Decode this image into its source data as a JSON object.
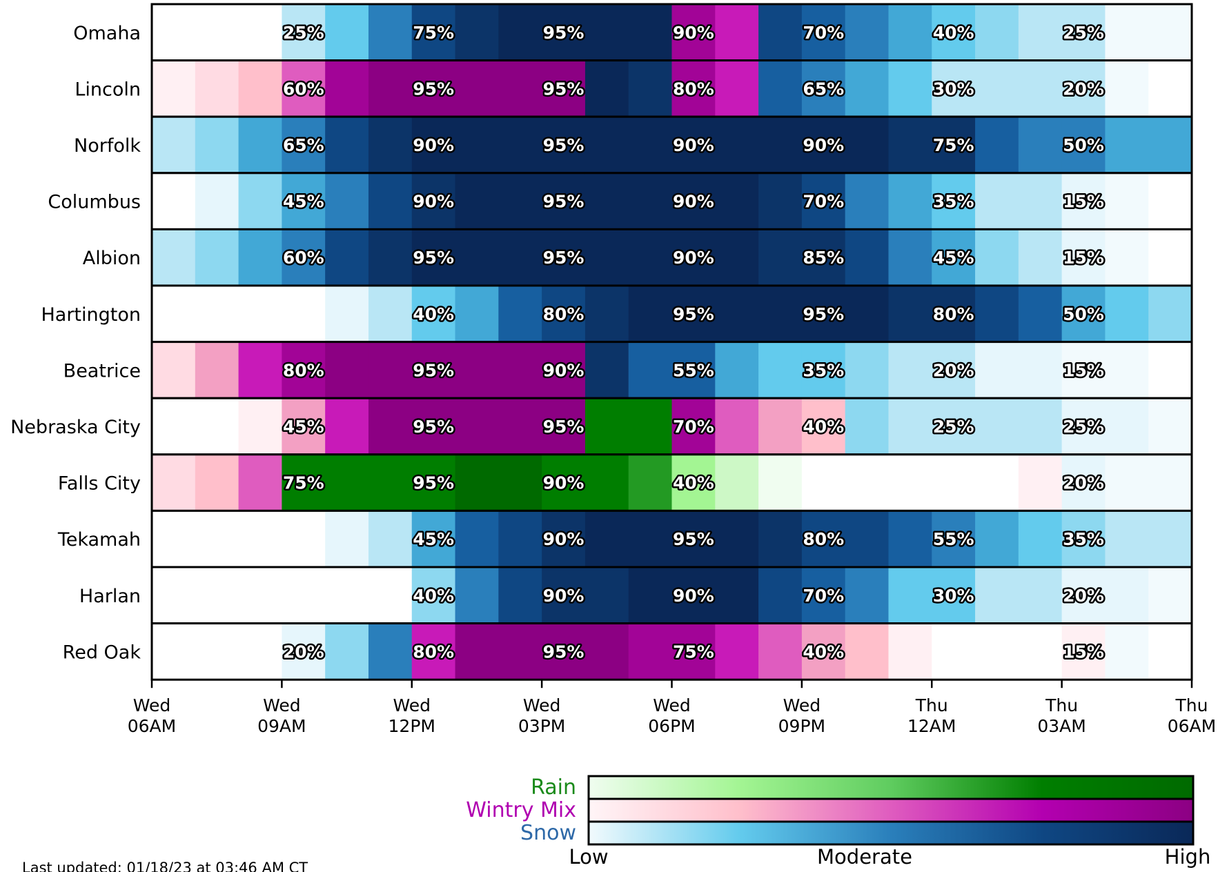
{
  "chart_data": {
    "type": "heatmap",
    "x_ticks": [
      "Wed 06AM",
      "Wed 09AM",
      "Wed 12PM",
      "Wed 03PM",
      "Wed 06PM",
      "Wed 09PM",
      "Thu 12AM",
      "Thu 03AM",
      "Thu 06AM"
    ],
    "hours_per_column": 1,
    "levels": [
      "n",
      "s1",
      "s2",
      "s3",
      "s4",
      "s5",
      "s6",
      "s7",
      "s8",
      "w1",
      "w2",
      "w3",
      "w4",
      "w5",
      "w6",
      "w7",
      "r1",
      "r2",
      "r3",
      "r4",
      "r5",
      "r6"
    ],
    "level_colors": {
      "n": "#ffffff",
      "s1": "#f2fafd",
      "s2": "#e6f6fc",
      "s3": "#b9e6f5",
      "s4": "#8dd8f0",
      "s5": "#63cbed",
      "s6": "#42a8d6",
      "s7": "#2a7fbb",
      "s8": "#175fa0",
      "s9": "#0f4783",
      "s10": "#0c3468",
      "s11": "#0a2858",
      "w1": "#fff0f3",
      "w2": "#ffdbe3",
      "w3": "#ffbfcb",
      "w4": "#f3a0c3",
      "w5": "#df5cbf",
      "w6": "#c81ab8",
      "w7": "#a20497",
      "w8": "#8c0083",
      "r1": "#f0fdf0",
      "r2": "#cdf8c6",
      "r3": "#a3f593",
      "r4": "#239a23",
      "r5": "#007e00",
      "r6": "#006a00"
    },
    "rows": [
      {
        "name": "Omaha",
        "levels": [
          "n",
          "n",
          "n",
          "s3",
          "s5",
          "s7",
          "s9",
          "s10",
          "s11",
          "s11",
          "s11",
          "s11",
          "w7",
          "w6",
          "s9",
          "s8",
          "s7",
          "s6",
          "s5",
          "s4",
          "s3",
          "s3",
          "s1",
          "s1"
        ],
        "labels": {
          "3": "25%",
          "6": "75%",
          "9": "95%",
          "12": "90%",
          "15": "70%",
          "18": "40%",
          "21": "25%"
        }
      },
      {
        "name": "Lincoln",
        "levels": [
          "w1",
          "w2",
          "w3",
          "w5",
          "w7",
          "w8",
          "w8",
          "w8",
          "w8",
          "w8",
          "s11",
          "s10",
          "w7",
          "w6",
          "s8",
          "s7",
          "s6",
          "s5",
          "s3",
          "s3",
          "s3",
          "s3",
          "s1",
          "n"
        ],
        "labels": {
          "3": "60%",
          "6": "95%",
          "9": "95%",
          "12": "80%",
          "15": "65%",
          "18": "30%",
          "21": "20%"
        }
      },
      {
        "name": "Norfolk",
        "levels": [
          "s3",
          "s4",
          "s6",
          "s7",
          "s9",
          "s10",
          "s11",
          "s11",
          "s11",
          "s11",
          "s11",
          "s11",
          "s11",
          "s11",
          "s11",
          "s11",
          "s11",
          "s10",
          "s10",
          "s8",
          "s7",
          "s7",
          "s6",
          "s6"
        ],
        "labels": {
          "3": "65%",
          "6": "90%",
          "9": "95%",
          "12": "90%",
          "15": "90%",
          "18": "75%",
          "21": "50%"
        }
      },
      {
        "name": "Columbus",
        "levels": [
          "n",
          "s2",
          "s4",
          "s6",
          "s7",
          "s9",
          "s10",
          "s11",
          "s11",
          "s11",
          "s11",
          "s11",
          "s11",
          "s11",
          "s10",
          "s9",
          "s7",
          "s6",
          "s5",
          "s3",
          "s3",
          "s2",
          "s1",
          "n"
        ],
        "labels": {
          "3": "45%",
          "6": "90%",
          "9": "95%",
          "12": "90%",
          "15": "70%",
          "18": "35%",
          "21": "15%"
        }
      },
      {
        "name": "Albion",
        "levels": [
          "s3",
          "s4",
          "s6",
          "s7",
          "s9",
          "s10",
          "s11",
          "s11",
          "s11",
          "s11",
          "s11",
          "s11",
          "s11",
          "s11",
          "s10",
          "s10",
          "s9",
          "s7",
          "s6",
          "s4",
          "s3",
          "s2",
          "s1",
          "n"
        ],
        "labels": {
          "3": "60%",
          "6": "95%",
          "9": "95%",
          "12": "90%",
          "15": "85%",
          "18": "45%",
          "21": "15%"
        }
      },
      {
        "name": "Hartington",
        "levels": [
          "n",
          "n",
          "n",
          "n",
          "s2",
          "s3",
          "s5",
          "s6",
          "s8",
          "s9",
          "s10",
          "s11",
          "s11",
          "s11",
          "s11",
          "s11",
          "s11",
          "s10",
          "s10",
          "s9",
          "s8",
          "s6",
          "s5",
          "s4"
        ],
        "labels": {
          "6": "40%",
          "9": "80%",
          "12": "95%",
          "15": "95%",
          "18": "80%",
          "21": "50%"
        }
      },
      {
        "name": "Beatrice",
        "levels": [
          "w2",
          "w4",
          "w6",
          "w7",
          "w8",
          "w8",
          "w8",
          "w8",
          "w8",
          "w8",
          "s10",
          "s8",
          "s8",
          "s6",
          "s5",
          "s5",
          "s4",
          "s3",
          "s3",
          "s2",
          "s2",
          "s1",
          "s1",
          "n"
        ],
        "labels": {
          "3": "80%",
          "6": "95%",
          "9": "90%",
          "12": "55%",
          "15": "35%",
          "18": "20%",
          "21": "15%"
        }
      },
      {
        "name": "Nebraska City",
        "levels": [
          "n",
          "n",
          "w1",
          "w4",
          "w6",
          "w8",
          "w8",
          "w8",
          "w8",
          "w8",
          "r5",
          "r5",
          "w7",
          "w5",
          "w4",
          "w3",
          "s4",
          "s3",
          "s3",
          "s3",
          "s3",
          "s2",
          "s2",
          "s1"
        ],
        "labels": {
          "3": "45%",
          "6": "95%",
          "9": "95%",
          "12": "70%",
          "15": "40%",
          "18": "25%",
          "21": "25%"
        }
      },
      {
        "name": "Falls City",
        "levels": [
          "w2",
          "w3",
          "w5",
          "r5",
          "r5",
          "r5",
          "r5",
          "r6",
          "r6",
          "r5",
          "r5",
          "r4",
          "r3",
          "r2",
          "r1",
          "n",
          "n",
          "n",
          "n",
          "n",
          "w1",
          "s2",
          "s1",
          "s1"
        ],
        "labels": {
          "3": "75%",
          "6": "95%",
          "9": "90%",
          "12": "40%",
          "21": "20%"
        }
      },
      {
        "name": "Tekamah",
        "levels": [
          "n",
          "n",
          "n",
          "n",
          "s2",
          "s3",
          "s6",
          "s8",
          "s9",
          "s10",
          "s11",
          "s11",
          "s11",
          "s11",
          "s10",
          "s9",
          "s9",
          "s8",
          "s7",
          "s6",
          "s5",
          "s4",
          "s3",
          "s3"
        ],
        "labels": {
          "6": "45%",
          "9": "90%",
          "12": "95%",
          "15": "80%",
          "18": "55%",
          "21": "35%"
        }
      },
      {
        "name": "Harlan",
        "levels": [
          "n",
          "n",
          "n",
          "n",
          "n",
          "n",
          "s4",
          "s7",
          "s9",
          "s10",
          "s10",
          "s11",
          "s11",
          "s11",
          "s9",
          "s8",
          "s7",
          "s5",
          "s5",
          "s3",
          "s3",
          "s2",
          "s2",
          "s1"
        ],
        "labels": {
          "6": "40%",
          "9": "90%",
          "12": "90%",
          "15": "70%",
          "18": "30%",
          "21": "20%"
        }
      },
      {
        "name": "Red Oak",
        "levels": [
          "n",
          "n",
          "n",
          "s2",
          "s4",
          "s7",
          "w6",
          "w8",
          "w8",
          "w8",
          "w8",
          "w7",
          "w7",
          "w6",
          "w5",
          "w4",
          "w3",
          "w1",
          "n",
          "n",
          "n",
          "w1",
          "s1",
          "n"
        ],
        "labels": {
          "3": "20%",
          "6": "80%",
          "9": "95%",
          "12": "75%",
          "15": "40%",
          "21": "15%"
        }
      }
    ],
    "legend": [
      {
        "name": "Rain",
        "color": "#1a8a1a",
        "gradient": [
          "#f0fdf0",
          "#a3f593",
          "#5fcc5f",
          "#007e00",
          "#006a00"
        ]
      },
      {
        "name": "Wintry Mix",
        "color": "#b000b0",
        "gradient": [
          "#fff5f7",
          "#ffbfcb",
          "#df5cbf",
          "#b300b0",
          "#8c0083"
        ]
      },
      {
        "name": "Snow",
        "color": "#2e69a8",
        "gradient": [
          "#f2fafd",
          "#63cbed",
          "#2a7fbb",
          "#0f4783",
          "#0a2858"
        ]
      }
    ],
    "legend_scale": {
      "low": "Low",
      "moderate": "Moderate",
      "high": "High"
    },
    "updated": "Last updated: 01/18/23 at 03:46 AM CT"
  }
}
